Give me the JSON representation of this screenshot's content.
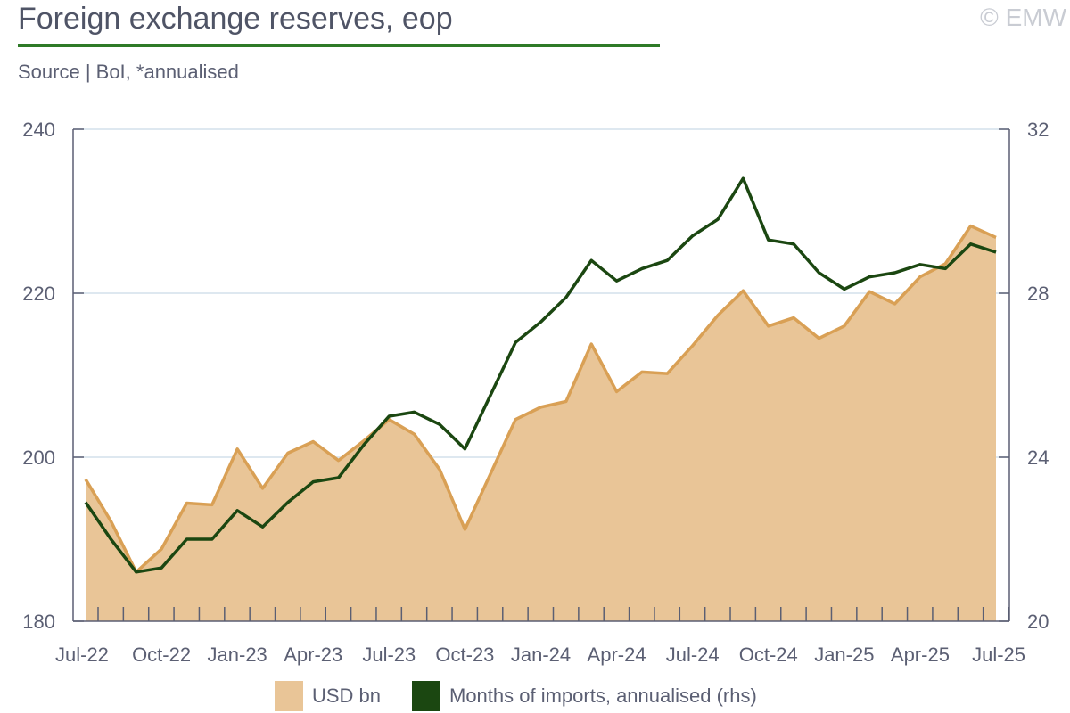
{
  "header": {
    "title": "Foreign exchange reserves, eop",
    "subtitle": "Source | BoI, *annualised",
    "copyright": "© EMW"
  },
  "colors": {
    "area_fill": "#e9c597",
    "area_line": "#d9a055",
    "line": "#1b4711",
    "grid": "#d3e0ec",
    "axis": "#5b5f73",
    "title_rule": "#2f7a28"
  },
  "legend": {
    "items": [
      {
        "label": "USD bn",
        "color": "#e9c597"
      },
      {
        "label": "Months of imports, annualised (rhs)",
        "color": "#1b4711"
      }
    ]
  },
  "chart_data": {
    "type": "area",
    "x_tick_labels": [
      "Jul-22",
      "Oct-22",
      "Jan-23",
      "Apr-23",
      "Jul-23",
      "Oct-23",
      "Jan-24",
      "Apr-24",
      "Jul-24",
      "Oct-24",
      "Jan-25",
      "Apr-25",
      "Jul-25"
    ],
    "categories": [
      "Jul-22",
      "Aug-22",
      "Sep-22",
      "Oct-22",
      "Nov-22",
      "Dec-22",
      "Jan-23",
      "Feb-23",
      "Mar-23",
      "Apr-23",
      "May-23",
      "Jun-23",
      "Jul-23",
      "Aug-23",
      "Sep-23",
      "Oct-23",
      "Nov-23",
      "Dec-23",
      "Jan-24",
      "Feb-24",
      "Mar-24",
      "Apr-24",
      "May-24",
      "Jun-24",
      "Jul-24",
      "Aug-24",
      "Sep-24",
      "Oct-24",
      "Nov-24",
      "Dec-24",
      "Jan-25",
      "Feb-25",
      "Mar-25",
      "Apr-25",
      "May-25",
      "Jun-25",
      "Jul-25"
    ],
    "series": [
      {
        "name": "USD bn",
        "axis": "left",
        "render": "area",
        "values": [
          197.3,
          192.2,
          186.0,
          188.8,
          194.4,
          194.2,
          201.0,
          196.2,
          200.5,
          201.9,
          199.6,
          202.0,
          204.6,
          202.8,
          198.5,
          191.2,
          197.9,
          204.6,
          206.1,
          206.8,
          213.8,
          208.0,
          210.4,
          210.2,
          213.6,
          217.3,
          220.3,
          216.0,
          217.0,
          214.5,
          216.0,
          220.2,
          218.7,
          222.0,
          223.6,
          228.2,
          226.8
        ]
      },
      {
        "name": "Months of imports, annualised (rhs)",
        "axis": "right",
        "render": "line",
        "values": [
          22.9,
          22.0,
          21.2,
          21.3,
          22.0,
          22.0,
          22.7,
          22.3,
          22.9,
          23.4,
          23.5,
          24.3,
          25.0,
          25.1,
          24.8,
          24.2,
          25.5,
          26.8,
          27.3,
          27.9,
          28.8,
          28.3,
          28.6,
          28.8,
          29.4,
          29.8,
          30.8,
          29.3,
          29.2,
          28.5,
          28.1,
          28.4,
          28.5,
          28.7,
          28.6,
          29.2,
          29.0
        ]
      }
    ],
    "ylim": [
      180,
      240
    ],
    "yticks": [
      180,
      200,
      220,
      240
    ],
    "ylim_right": [
      20,
      32
    ],
    "yticks_right": [
      20,
      24,
      28,
      32
    ],
    "xlabel": "",
    "ylabel": "",
    "grid": true,
    "legend_position": "bottom"
  }
}
